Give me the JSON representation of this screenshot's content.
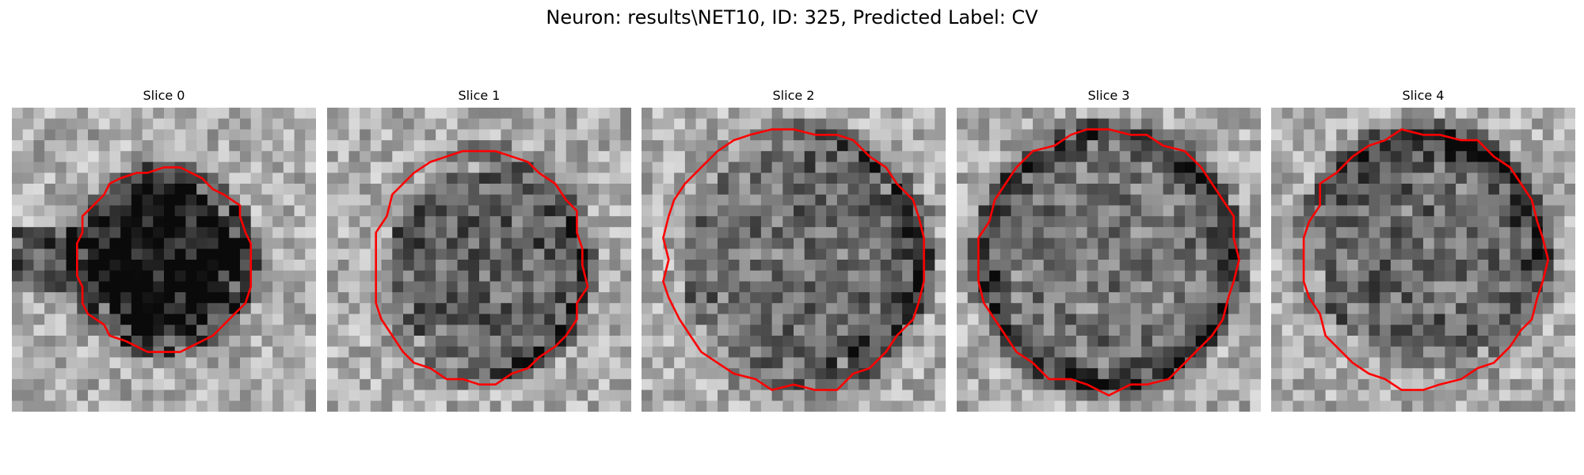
{
  "figure": {
    "suptitle": "Neuron: results\\NET10, ID: 325, Predicted Label: CV"
  },
  "panels": [
    {
      "title": "Slice 0"
    },
    {
      "title": "Slice 1"
    },
    {
      "title": "Slice 2"
    },
    {
      "title": "Slice 3"
    },
    {
      "title": "Slice 4"
    }
  ],
  "colors": {
    "contour": "#ff0000",
    "background": "#ffffff"
  },
  "colormap": "gray"
}
